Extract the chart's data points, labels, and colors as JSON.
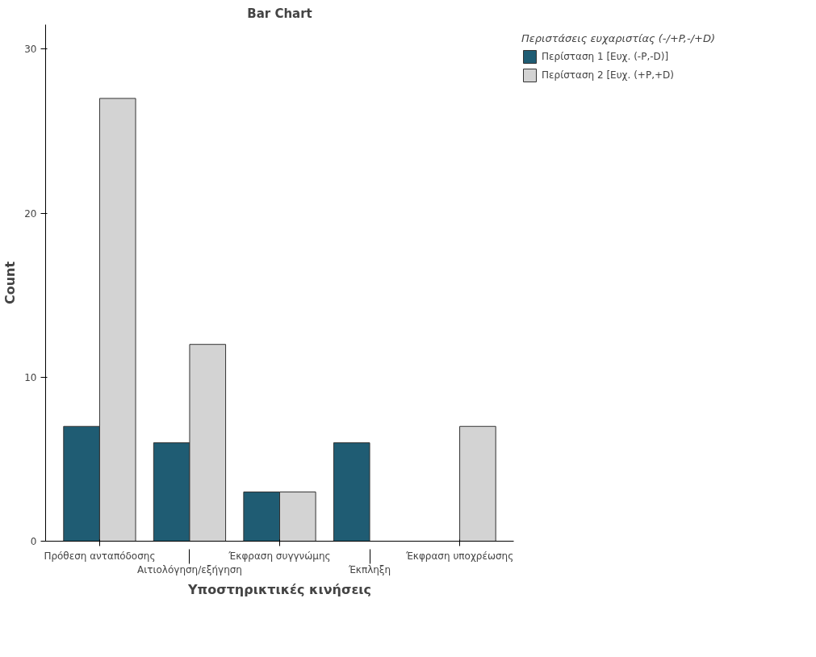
{
  "chart_data": {
    "type": "bar",
    "title": "Bar Chart",
    "xlabel": "Υποστηρικτικές κινήσεις",
    "ylabel": "Count",
    "legend_title": "Περιστάσεις ευχαριστίας (-/+P,-/+D)",
    "categories": [
      "Πρόθεση ανταπόδοσης",
      "Αιτιολόγηση/εξήγηση",
      "Έκφραση συγγνώμης",
      "Έκπληξη",
      "Έκφραση υποχρέωσης"
    ],
    "series": [
      {
        "name": "Περίσταση 1 [Ευχ. (-P,-D)]",
        "color": "#1f5c73",
        "values": [
          7,
          6,
          3,
          6,
          null
        ]
      },
      {
        "name": "Περίσταση 2 [Ευχ. (+P,+D)",
        "color": "#d3d3d3",
        "values": [
          27,
          12,
          3,
          null,
          7
        ]
      }
    ],
    "ylim": [
      0,
      31.5
    ],
    "yticks": [
      0,
      10,
      20,
      30
    ],
    "grid": false,
    "legend": "top right"
  }
}
